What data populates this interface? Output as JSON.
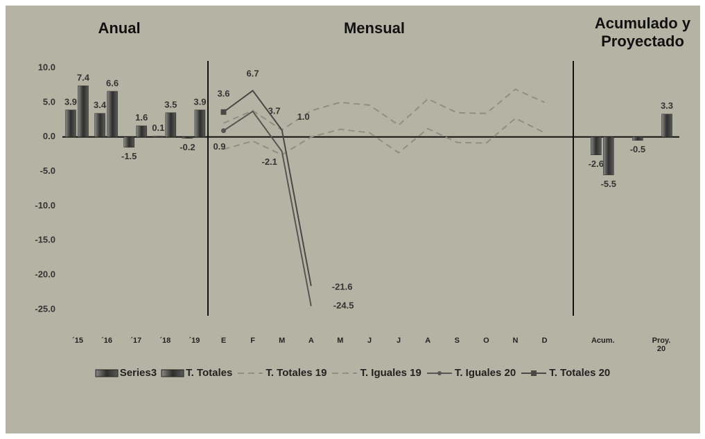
{
  "chart_data": {
    "type": "combo",
    "annotations": [
      "Anual",
      "Mensual",
      "Acumulado y Proyectado"
    ],
    "categories": [
      "´15",
      "´16",
      "´17",
      "´18",
      "´19",
      "E",
      "F",
      "M",
      "A",
      "M",
      "J",
      "J",
      "A",
      "S",
      "O",
      "N",
      "D",
      null,
      "Acum.",
      null,
      "Proy. 20"
    ],
    "ylim": [
      -25,
      10
    ],
    "yticks": [
      {
        "value": -25,
        "label": "-25.0"
      },
      {
        "value": -20,
        "label": "-20.0"
      },
      {
        "value": -15,
        "label": "-15.0"
      },
      {
        "value": -10,
        "label": "-10.0"
      },
      {
        "value": -5,
        "label": "-5.0"
      },
      {
        "value": 0,
        "label": "0.0"
      },
      {
        "value": 5,
        "label": "5.0"
      },
      {
        "value": 10,
        "label": "10.0"
      }
    ],
    "legend": "bottom",
    "series": [
      {
        "name": "Series3",
        "type": "bar",
        "color": "#3c3c3a",
        "values": [
          3.9,
          3.4,
          -1.5,
          0.1,
          -0.2,
          null,
          null,
          null,
          null,
          null,
          null,
          null,
          null,
          null,
          null,
          null,
          null,
          null,
          -2.6,
          null,
          null
        ]
      },
      {
        "name": "T. Totales",
        "type": "bar",
        "color": "#3c3c3a",
        "values": [
          7.4,
          6.6,
          1.6,
          3.5,
          3.9,
          null,
          null,
          null,
          null,
          null,
          null,
          null,
          null,
          null,
          null,
          null,
          null,
          null,
          -5.5,
          -0.5,
          3.3
        ]
      },
      {
        "name": "T. Totales 19",
        "type": "line",
        "dash": true,
        "color": "#8f8e84",
        "values": [
          null,
          null,
          null,
          null,
          null,
          2.0,
          3.8,
          1.0,
          3.8,
          5.0,
          4.6,
          1.7,
          5.5,
          3.5,
          3.4,
          6.9,
          5.0,
          null,
          null,
          null,
          null
        ]
      },
      {
        "name": "T. Iguales 19",
        "type": "line",
        "dash": true,
        "color": "#8f8e84",
        "values": [
          null,
          null,
          null,
          null,
          null,
          -1.8,
          -0.6,
          -2.6,
          0.0,
          1.1,
          0.6,
          -2.3,
          1.2,
          -0.8,
          -0.9,
          2.7,
          0.6,
          null,
          null,
          null,
          null
        ]
      },
      {
        "name": "T. Iguales 20",
        "type": "line",
        "marker": "circle",
        "color": "#555553",
        "values": [
          null,
          null,
          null,
          null,
          null,
          0.9,
          3.7,
          -2.1,
          -24.5,
          null,
          null,
          null,
          null,
          null,
          null,
          null,
          null,
          null,
          null,
          null,
          null
        ],
        "value_labels": [
          null,
          null,
          null,
          null,
          null,
          "0.9",
          "3.7",
          "-2.1",
          "-24.5",
          null,
          null,
          null,
          null,
          null,
          null,
          null,
          null,
          null,
          null,
          null,
          null
        ]
      },
      {
        "name": "T. Totales 20",
        "type": "line",
        "marker": "square",
        "color": "#484846",
        "values": [
          null,
          null,
          null,
          null,
          null,
          3.6,
          6.7,
          1.0,
          -21.6,
          null,
          null,
          null,
          null,
          null,
          null,
          null,
          null,
          null,
          null,
          null,
          null
        ],
        "value_labels": [
          null,
          null,
          null,
          null,
          null,
          "3.6",
          "6.7",
          "1.0",
          "-21.6",
          null,
          null,
          null,
          null,
          null,
          null,
          null,
          null,
          null,
          null,
          null,
          null
        ]
      }
    ]
  }
}
